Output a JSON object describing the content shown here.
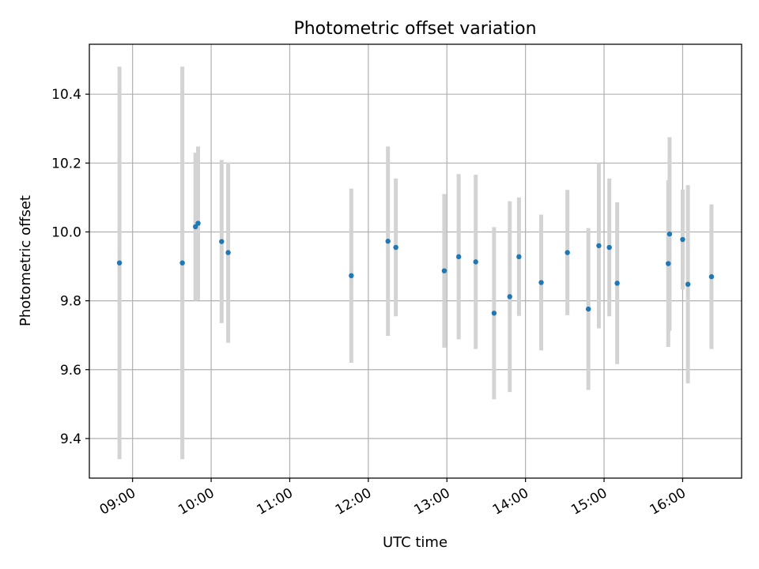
{
  "chart_data": {
    "type": "scatter",
    "title": "Photometric offset variation",
    "xlabel": "UTC time",
    "ylabel": "Photometric offset",
    "x_ticks": [
      "09:00",
      "10:00",
      "11:00",
      "12:00",
      "13:00",
      "14:00",
      "15:00",
      "16:00"
    ],
    "y_ticks": [
      "9.4",
      "9.6",
      "9.8",
      "10.0",
      "10.2",
      "10.4"
    ],
    "xlim": [
      "08:27",
      "16:45"
    ],
    "ylim": [
      9.285,
      10.545
    ],
    "grid": true,
    "points": [
      {
        "x": "08:50",
        "y": 9.91,
        "err": 0.57
      },
      {
        "x": "09:38",
        "y": 9.91,
        "err": 0.57
      },
      {
        "x": "09:48",
        "y": 10.015,
        "err": 0.215
      },
      {
        "x": "09:50",
        "y": 10.025,
        "err": 0.223
      },
      {
        "x": "10:08",
        "y": 9.972,
        "err": 0.237
      },
      {
        "x": "10:13",
        "y": 9.94,
        "err": 0.262
      },
      {
        "x": "11:47",
        "y": 9.873,
        "err": 0.253
      },
      {
        "x": "12:15",
        "y": 9.973,
        "err": 0.275
      },
      {
        "x": "12:21",
        "y": 9.955,
        "err": 0.2
      },
      {
        "x": "12:58",
        "y": 9.887,
        "err": 0.223
      },
      {
        "x": "13:09",
        "y": 9.928,
        "err": 0.24
      },
      {
        "x": "13:22",
        "y": 9.913,
        "err": 0.253
      },
      {
        "x": "13:36",
        "y": 9.764,
        "err": 0.25
      },
      {
        "x": "13:48",
        "y": 9.812,
        "err": 0.277
      },
      {
        "x": "13:55",
        "y": 9.928,
        "err": 0.172
      },
      {
        "x": "14:12",
        "y": 9.853,
        "err": 0.197
      },
      {
        "x": "14:32",
        "y": 9.94,
        "err": 0.182
      },
      {
        "x": "14:48",
        "y": 9.776,
        "err": 0.235
      },
      {
        "x": "14:56",
        "y": 9.96,
        "err": 0.24
      },
      {
        "x": "15:04",
        "y": 9.955,
        "err": 0.2
      },
      {
        "x": "15:10",
        "y": 9.851,
        "err": 0.235
      },
      {
        "x": "15:49",
        "y": 9.908,
        "err": 0.242
      },
      {
        "x": "15:50",
        "y": 9.994,
        "err": 0.281
      },
      {
        "x": "16:00",
        "y": 9.978,
        "err": 0.145
      },
      {
        "x": "16:04",
        "y": 9.848,
        "err": 0.288
      },
      {
        "x": "16:22",
        "y": 9.87,
        "err": 0.21
      }
    ],
    "point_color": "#1f77b4",
    "errorbar_color": "#d3d3d3",
    "grid_color": "#b0b0b0"
  }
}
